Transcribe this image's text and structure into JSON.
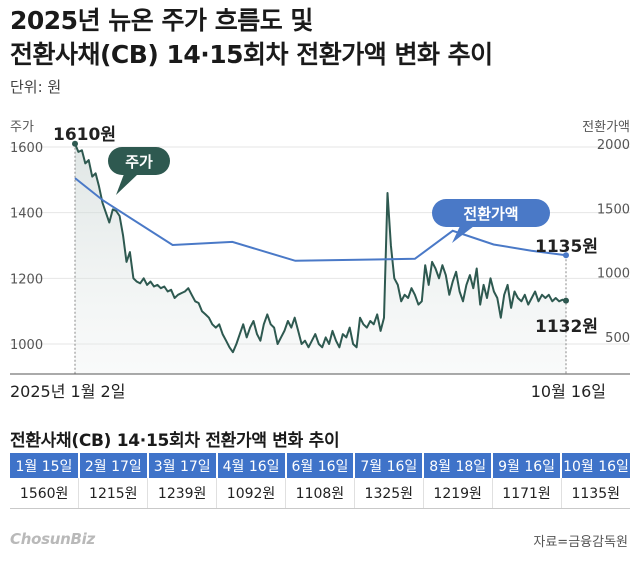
{
  "title_line1": "2025년 뉴온 주가 흐름도 및",
  "title_line2": "전환사채(CB) 14·15회차 전환가액 변화 추이",
  "unit": "단위: 원",
  "logo": "ChosunBiz",
  "source": "자료=금융감독원",
  "colors": {
    "stock": "#2e5950",
    "cb": "#4a79c7",
    "header": "#3f73c9"
  },
  "chart_data": {
    "type": "line",
    "left_axis": {
      "label": "주가",
      "ticks": [
        1000,
        1200,
        1400,
        1600
      ]
    },
    "right_axis": {
      "label": "전환가액",
      "ticks": [
        500,
        1000,
        1500,
        2000
      ]
    },
    "x_start_label": "2025년 1월 2일",
    "x_end_label": "10월 16일",
    "series": [
      {
        "name": "주가",
        "axis": "left",
        "annotations": {
          "start": "1610원",
          "end": "1132원"
        },
        "values": [
          1610,
          1585,
          1590,
          1550,
          1560,
          1510,
          1520,
          1480,
          1430,
          1400,
          1370,
          1410,
          1405,
          1390,
          1330,
          1250,
          1280,
          1200,
          1190,
          1185,
          1200,
          1180,
          1190,
          1175,
          1180,
          1170,
          1175,
          1160,
          1165,
          1140,
          1150,
          1155,
          1160,
          1170,
          1150,
          1130,
          1125,
          1100,
          1090,
          1080,
          1060,
          1050,
          1060,
          1030,
          1010,
          990,
          975,
          1000,
          1030,
          1060,
          1020,
          1050,
          1070,
          1030,
          1010,
          1060,
          1090,
          1060,
          1050,
          1000,
          1020,
          1040,
          1070,
          1050,
          1080,
          1040,
          1000,
          1010,
          990,
          1010,
          1030,
          1000,
          990,
          1020,
          1000,
          1040,
          1010,
          990,
          1030,
          1020,
          1050,
          1000,
          990,
          1080,
          1060,
          1050,
          1070,
          1060,
          1090,
          1040,
          1080,
          1460,
          1300,
          1200,
          1180,
          1130,
          1150,
          1140,
          1170,
          1150,
          1120,
          1130,
          1240,
          1180,
          1250,
          1230,
          1200,
          1240,
          1210,
          1150,
          1190,
          1220,
          1160,
          1130,
          1180,
          1210,
          1170,
          1230,
          1120,
          1180,
          1140,
          1200,
          1160,
          1140,
          1080,
          1150,
          1180,
          1110,
          1160,
          1140,
          1130,
          1150,
          1120,
          1140,
          1160,
          1130,
          1150,
          1140,
          1150,
          1130,
          1140,
          1130,
          1135,
          1132
        ]
      },
      {
        "name": "전환가액",
        "axis": "right",
        "annotations": {
          "end": "1135원"
        },
        "points": [
          {
            "x": "1월 2일",
            "y": 1735
          },
          {
            "x": "1월 15일",
            "y": 1560
          },
          {
            "x": "2월 17일",
            "y": 1215
          },
          {
            "x": "3월 17일",
            "y": 1239
          },
          {
            "x": "4월 16일",
            "y": 1092
          },
          {
            "x": "6월 16일",
            "y": 1108
          },
          {
            "x": "7월 16일",
            "y": 1325
          },
          {
            "x": "8월 18일",
            "y": 1219
          },
          {
            "x": "9월 16일",
            "y": 1171
          },
          {
            "x": "10월 16일",
            "y": 1135
          }
        ]
      }
    ],
    "callouts": {
      "stock": "주가",
      "cb": "전환가액"
    }
  },
  "table": {
    "title": "전환사채(CB) 14·15회차 전환가액 변화 추이",
    "headers": [
      "1월 15일",
      "2월 17일",
      "3월 17일",
      "4월 16일",
      "6월 16일",
      "7월 16일",
      "8월 18일",
      "9월 16일",
      "10월 16일"
    ],
    "values": [
      "1560원",
      "1215원",
      "1239원",
      "1092원",
      "1108원",
      "1325원",
      "1219원",
      "1171원",
      "1135원"
    ]
  }
}
